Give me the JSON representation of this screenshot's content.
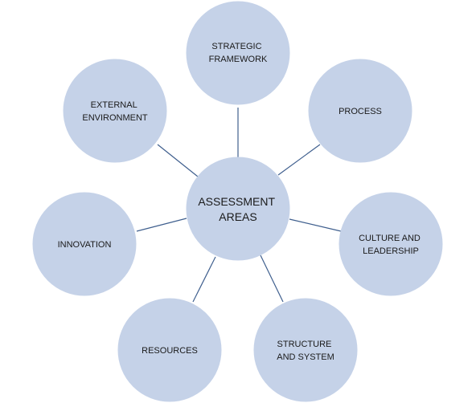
{
  "center": {
    "lines": [
      "ASSESSMENT",
      "AREAS"
    ]
  },
  "nodes": [
    {
      "id": "strategic-framework",
      "lines": [
        "STRATEGIC",
        "FRAMEWORK"
      ]
    },
    {
      "id": "process",
      "lines": [
        "PROCESS"
      ]
    },
    {
      "id": "culture-and-leadership",
      "lines": [
        "CULTURE AND",
        "LEADERSHIP"
      ]
    },
    {
      "id": "structure-and-system",
      "lines": [
        "STRUCTURE",
        "AND SYSTEM"
      ]
    },
    {
      "id": "resources",
      "lines": [
        "RESOURCES"
      ]
    },
    {
      "id": "innovation",
      "lines": [
        "INNOVATION"
      ]
    },
    {
      "id": "external-environment",
      "lines": [
        "EXTERNAL",
        "ENVIRONMENT"
      ]
    }
  ],
  "colors": {
    "circle_fill": "#c5d2e8",
    "connector": "#3f5f8e",
    "text": "#1a1a1a"
  }
}
